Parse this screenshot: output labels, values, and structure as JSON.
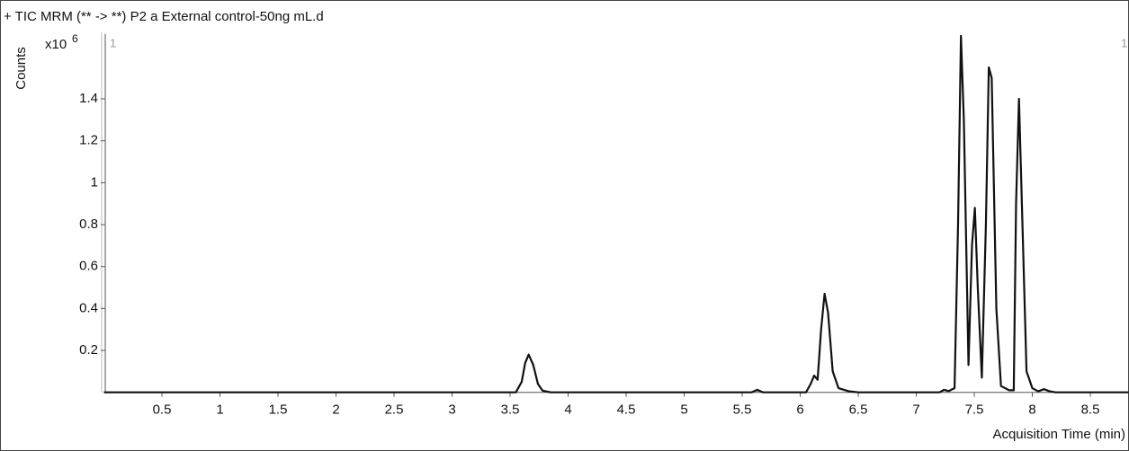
{
  "chart_data": {
    "type": "line",
    "title": "+ TIC MRM (** -> **) P2 a External control-50ng mL.d",
    "y_label": "Counts",
    "y_scale_label": "x10",
    "y_scale_exponent": "6",
    "x_label": "Acquisition Time (min)",
    "annotations": [
      "1",
      "1"
    ],
    "xlim": [
      0,
      8.83
    ],
    "ylim": [
      0,
      1.71
    ],
    "xticks": [
      0.5,
      1,
      1.5,
      2,
      2.5,
      3,
      3.5,
      4,
      4.5,
      5,
      5.5,
      6,
      6.5,
      7,
      7.5,
      8,
      8.5
    ],
    "yticks": [
      0.2,
      0.4,
      0.6,
      0.8,
      1,
      1.2,
      1.4
    ],
    "series": [
      {
        "color": "#111111",
        "x": [
          0,
          3.55,
          3.6,
          3.63,
          3.66,
          3.7,
          3.74,
          3.78,
          3.85,
          5.58,
          5.63,
          5.68,
          6.05,
          6.09,
          6.12,
          6.15,
          6.18,
          6.21,
          6.24,
          6.28,
          6.33,
          6.42,
          6.5,
          7.2,
          7.24,
          7.28,
          7.33,
          7.36,
          7.385,
          7.41,
          7.45,
          7.48,
          7.505,
          7.53,
          7.565,
          7.6,
          7.625,
          7.65,
          7.69,
          7.73,
          7.8,
          7.84,
          7.86,
          7.885,
          7.91,
          7.95,
          8.0,
          8.05,
          8.1,
          8.15,
          8.2,
          8.83
        ],
        "values": [
          0,
          0,
          0.05,
          0.14,
          0.18,
          0.13,
          0.04,
          0.008,
          0,
          0,
          0.012,
          0,
          0,
          0.04,
          0.08,
          0.06,
          0.3,
          0.47,
          0.38,
          0.1,
          0.02,
          0.005,
          0,
          0,
          0.012,
          0.006,
          0.02,
          0.8,
          1.7,
          1.3,
          0.13,
          0.7,
          0.88,
          0.5,
          0.07,
          0.8,
          1.55,
          1.5,
          0.4,
          0.03,
          0.01,
          0.01,
          0.9,
          1.4,
          0.9,
          0.1,
          0.02,
          0.005,
          0.015,
          0.005,
          0,
          0
        ]
      }
    ]
  }
}
